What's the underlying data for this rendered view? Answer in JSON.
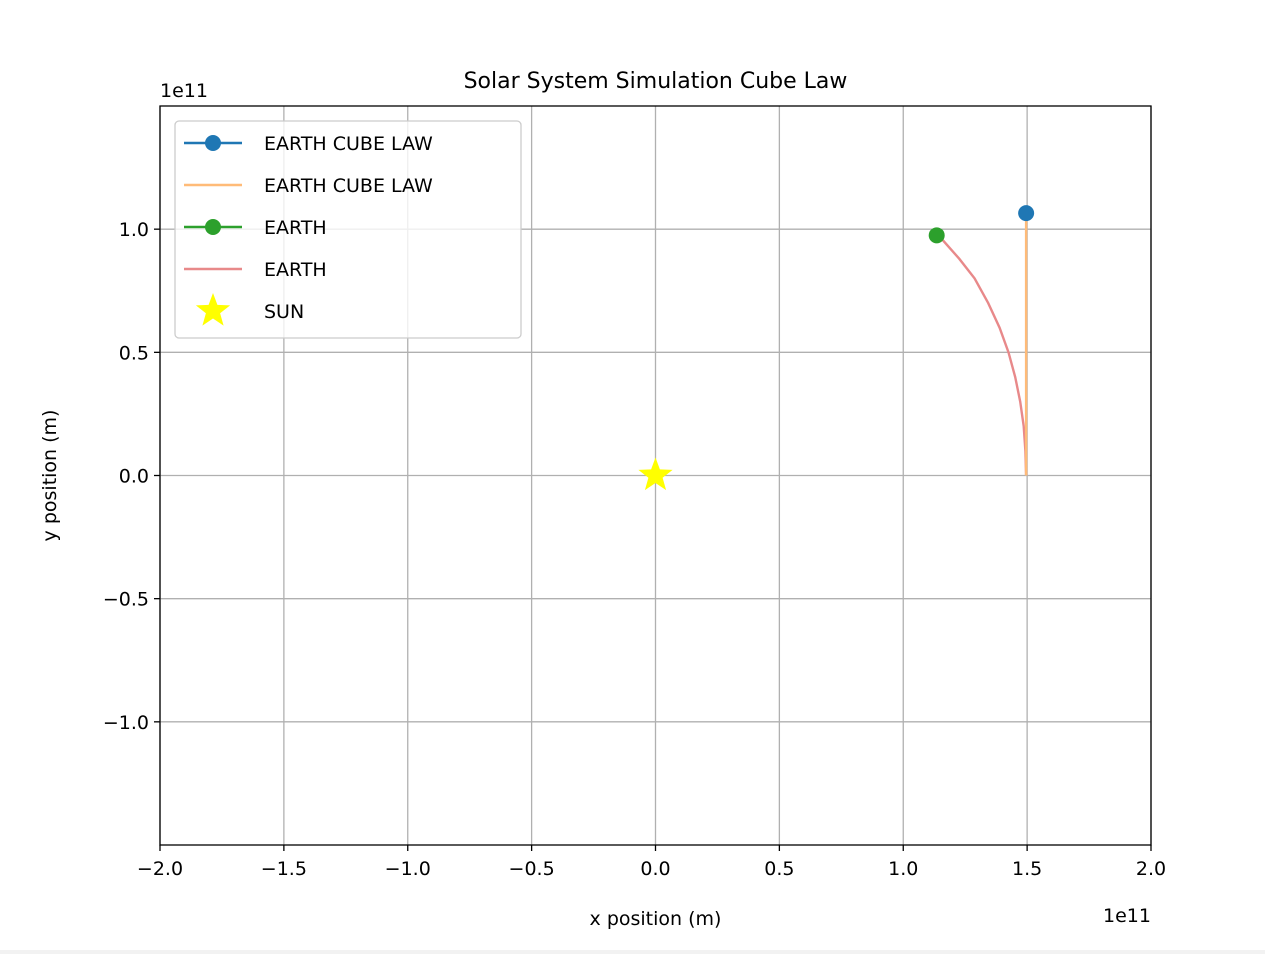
{
  "chart_data": {
    "type": "line",
    "title": "Solar System Simulation Cube Law",
    "xlabel": "x position (m)",
    "ylabel": "y position (m)",
    "x_offset_label": "1e11",
    "y_offset_label": "1e11",
    "xlim": [
      -2.0,
      2.0
    ],
    "ylim": [
      -1.5,
      1.5
    ],
    "x_scale": 100000000000.0,
    "y_scale": 100000000000.0,
    "xticks": [
      -2.0,
      -1.5,
      -1.0,
      -0.5,
      0.0,
      0.5,
      1.0,
      1.5,
      2.0
    ],
    "xtick_labels": [
      "−2.0",
      "−1.5",
      "−1.0",
      "−0.5",
      "0.0",
      "0.5",
      "1.0",
      "1.5",
      "2.0"
    ],
    "yticks": [
      -1.0,
      -0.5,
      0.0,
      0.5,
      1.0
    ],
    "ytick_labels": [
      "−1.0",
      "−0.5",
      "0.0",
      "0.5",
      "1.0"
    ],
    "grid": true,
    "legend_position": "top-left",
    "series": [
      {
        "name": "EARTH CUBE LAW",
        "kind": "marker",
        "color": "#1f77b4",
        "x": [
          1.496
        ],
        "y": [
          1.065
        ]
      },
      {
        "name": "EARTH CUBE LAW",
        "kind": "path",
        "color": "#ffbb78",
        "x": [
          1.496,
          1.496,
          1.496,
          1.496
        ],
        "y": [
          0.0,
          0.35,
          0.7,
          1.065
        ]
      },
      {
        "name": "EARTH",
        "kind": "marker",
        "color": "#2ca02c",
        "x": [
          1.135
        ],
        "y": [
          0.975
        ]
      },
      {
        "name": "EARTH",
        "kind": "path",
        "color": "#e8898a",
        "x": [
          1.496,
          1.493,
          1.486,
          1.472,
          1.452,
          1.425,
          1.389,
          1.343,
          1.288,
          1.226,
          1.16,
          1.135
        ],
        "y": [
          0.0,
          0.1,
          0.2,
          0.3,
          0.4,
          0.5,
          0.6,
          0.7,
          0.8,
          0.88,
          0.955,
          0.975
        ]
      },
      {
        "name": "SUN",
        "kind": "star",
        "color": "#ffff00",
        "x": [
          0.0
        ],
        "y": [
          0.0
        ]
      }
    ]
  }
}
